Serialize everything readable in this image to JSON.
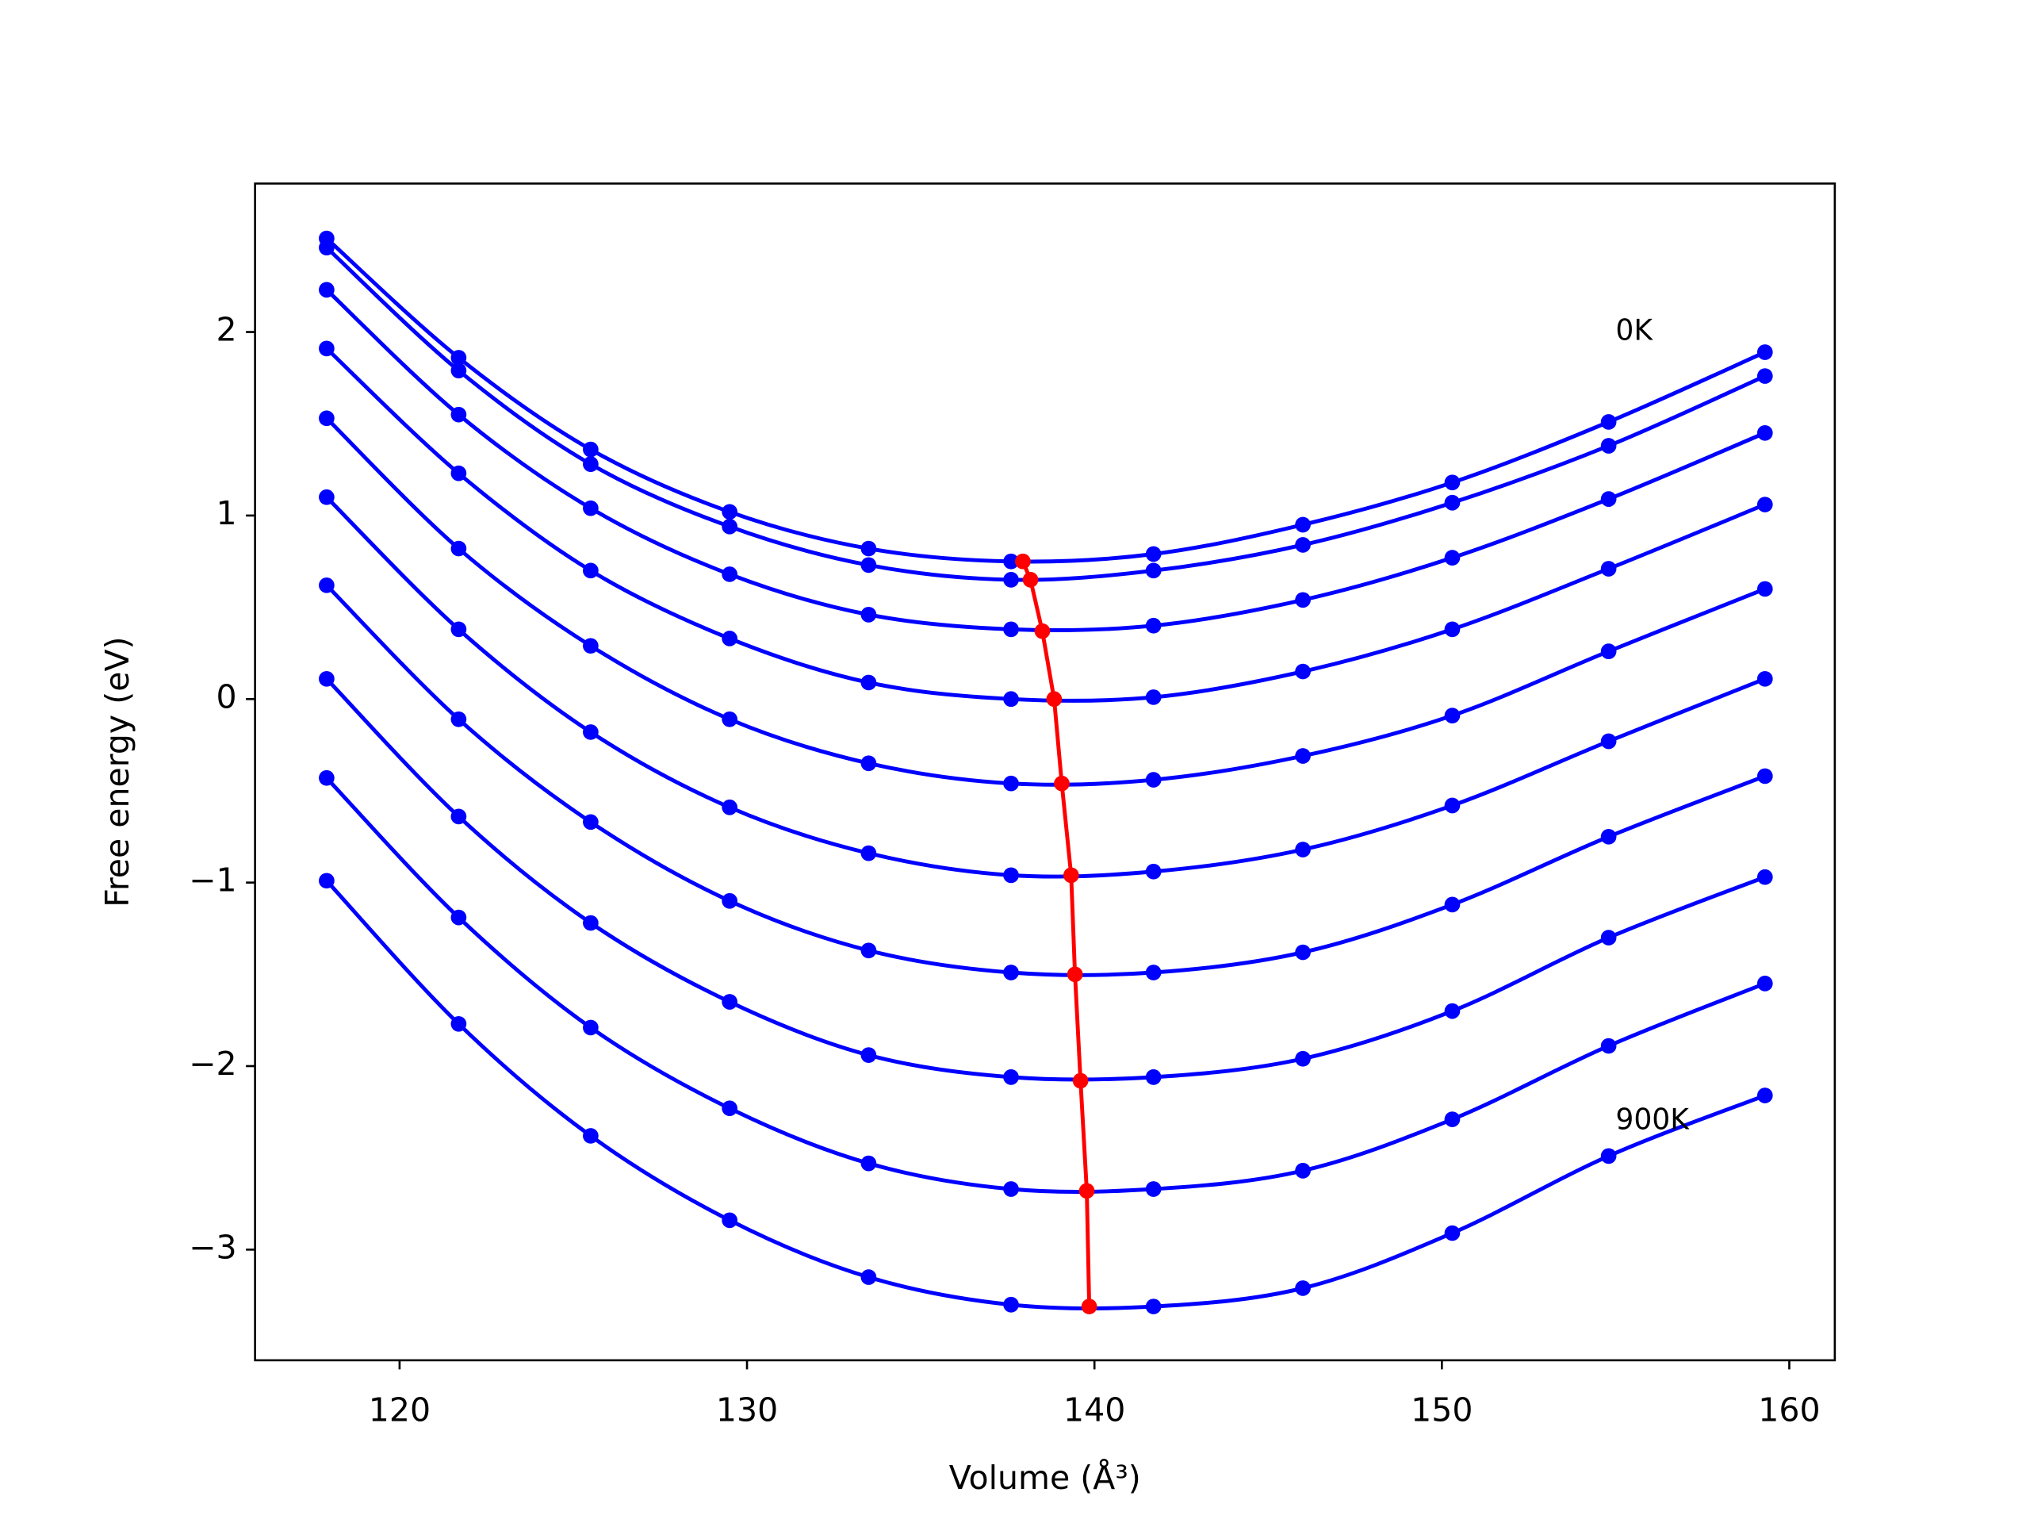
{
  "chart_data": {
    "type": "line",
    "xlabel": "Volume (Å³)",
    "ylabel": "Free energy (eV)",
    "x": [
      117.9,
      121.7,
      125.5,
      129.5,
      133.5,
      137.6,
      141.7,
      146.0,
      150.3,
      154.8,
      159.3
    ],
    "series": [
      {
        "color": "#0000ff",
        "values": [
          2.51,
          1.86,
          1.36,
          1.02,
          0.82,
          0.75,
          0.79,
          0.95,
          1.18,
          1.51,
          1.89
        ]
      },
      {
        "color": "#0000ff",
        "values": [
          2.46,
          1.79,
          1.28,
          0.94,
          0.73,
          0.65,
          0.7,
          0.84,
          1.07,
          1.38,
          1.76
        ]
      },
      {
        "color": "#0000ff",
        "values": [
          2.23,
          1.55,
          1.04,
          0.68,
          0.46,
          0.38,
          0.4,
          0.54,
          0.77,
          1.09,
          1.45
        ]
      },
      {
        "color": "#0000ff",
        "values": [
          1.91,
          1.23,
          0.7,
          0.33,
          0.09,
          0.0,
          0.01,
          0.15,
          0.38,
          0.71,
          1.06
        ]
      },
      {
        "color": "#0000ff",
        "values": [
          1.53,
          0.82,
          0.29,
          -0.11,
          -0.35,
          -0.46,
          -0.44,
          -0.31,
          -0.09,
          0.26,
          0.6
        ]
      },
      {
        "color": "#0000ff",
        "values": [
          1.1,
          0.38,
          -0.18,
          -0.59,
          -0.84,
          -0.96,
          -0.94,
          -0.82,
          -0.58,
          -0.23,
          0.11
        ]
      },
      {
        "color": "#0000ff",
        "values": [
          0.62,
          -0.11,
          -0.67,
          -1.1,
          -1.37,
          -1.49,
          -1.49,
          -1.38,
          -1.12,
          -0.75,
          -0.42
        ]
      },
      {
        "color": "#0000ff",
        "values": [
          0.11,
          -0.64,
          -1.22,
          -1.65,
          -1.94,
          -2.06,
          -2.06,
          -1.96,
          -1.7,
          -1.3,
          -0.97
        ]
      },
      {
        "color": "#0000ff",
        "values": [
          -0.43,
          -1.19,
          -1.79,
          -2.23,
          -2.53,
          -2.67,
          -2.67,
          -2.57,
          -2.29,
          -1.89,
          -1.55
        ]
      },
      {
        "color": "#0000ff",
        "values": [
          -0.99,
          -1.77,
          -2.38,
          -2.84,
          -3.15,
          -3.3,
          -3.31,
          -3.21,
          -2.91,
          -2.49,
          -2.16
        ]
      }
    ],
    "minima": {
      "color": "#ff0000",
      "x": [
        137.94,
        138.16,
        138.5,
        138.84,
        139.06,
        139.33,
        139.44,
        139.6,
        139.78,
        139.85
      ],
      "values": [
        0.75,
        0.65,
        0.37,
        0.0,
        -0.46,
        -0.96,
        -1.5,
        -2.08,
        -2.68,
        -3.31
      ]
    },
    "annotations": [
      {
        "text": "0K",
        "x": 155.0,
        "y": 2.0
      },
      {
        "text": "900K",
        "x": 155.0,
        "y": -2.3
      }
    ],
    "xlim": [
      115.84,
      161.31
    ],
    "ylim": [
      -3.603,
      2.809
    ],
    "xticks": [
      120,
      130,
      140,
      150,
      160
    ],
    "yticks": [
      {
        "value": -3,
        "label": "−3"
      },
      {
        "value": -2,
        "label": "−2"
      },
      {
        "value": -1,
        "label": "−1"
      },
      0,
      1,
      2
    ]
  }
}
